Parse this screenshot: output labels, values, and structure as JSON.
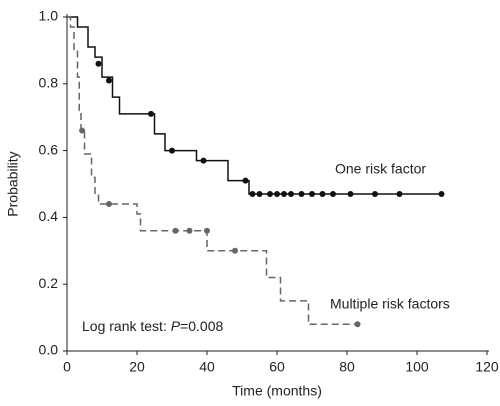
{
  "chart_data": {
    "type": "step",
    "x_label": "Time (months)",
    "y_label": "Probability",
    "xlim": [
      0,
      120
    ],
    "xticks": [
      0,
      20,
      40,
      60,
      80,
      100,
      120
    ],
    "ylim": [
      0,
      1
    ],
    "yticks": [
      {
        "value": 0,
        "label": "0.0"
      },
      0.2,
      0.4,
      0.6,
      0.8,
      {
        "value": 1,
        "label": "1.0"
      }
    ],
    "series": [
      {
        "name": "One risk factor",
        "color": "#111111",
        "dash": false,
        "x": [
          0,
          3,
          6,
          8,
          10,
          13,
          15,
          25,
          28,
          37,
          46,
          52,
          107
        ],
        "values": [
          1.0,
          0.97,
          0.91,
          0.88,
          0.82,
          0.76,
          0.71,
          0.65,
          0.6,
          0.57,
          0.51,
          0.47,
          0.47
        ],
        "censor_x": [
          9,
          12,
          24,
          30,
          39,
          51,
          53,
          55,
          58,
          60,
          62,
          64,
          67,
          70,
          73,
          76,
          81,
          88,
          95,
          107
        ],
        "censor_values": [
          0.86,
          0.81,
          0.71,
          0.6,
          0.57,
          0.51,
          0.47,
          0.47,
          0.47,
          0.47,
          0.47,
          0.47,
          0.47,
          0.47,
          0.47,
          0.47,
          0.47,
          0.47,
          0.47,
          0.47
        ]
      },
      {
        "name": "Multiple risk factors",
        "color": "#666666",
        "dash": true,
        "x": [
          0,
          1,
          2,
          3,
          3.5,
          4,
          5,
          7,
          8,
          9,
          20,
          21,
          40,
          57,
          61,
          69,
          83
        ],
        "values": [
          1.0,
          0.97,
          0.9,
          0.82,
          0.72,
          0.66,
          0.59,
          0.52,
          0.47,
          0.44,
          0.41,
          0.36,
          0.3,
          0.22,
          0.15,
          0.08,
          0.08
        ],
        "censor_x": [
          4.3,
          12,
          31,
          35,
          40,
          48,
          83
        ],
        "censor_values": [
          0.66,
          0.44,
          0.36,
          0.36,
          0.36,
          0.3,
          0.08
        ]
      }
    ],
    "annotation": {
      "prefix": "Log rank test: ",
      "italic": "P",
      "suffix": "=0.008"
    }
  }
}
